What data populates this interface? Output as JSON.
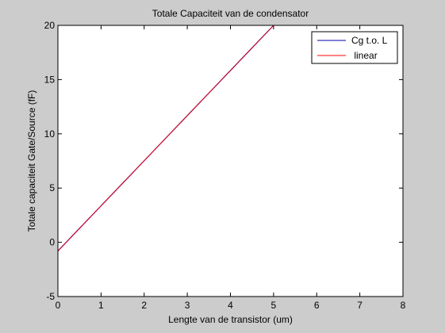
{
  "chart_data": {
    "type": "line",
    "title": "Totale Capaciteit van de condensator",
    "xlabel": "Lengte van de transistor (um)",
    "ylabel": "Totale capaciteit Gate/Source (fF)",
    "xlim": [
      0,
      8
    ],
    "ylim": [
      -5,
      20
    ],
    "xticks": [
      0,
      1,
      2,
      3,
      4,
      5,
      6,
      7,
      8
    ],
    "yticks": [
      -5,
      0,
      5,
      10,
      15,
      20
    ],
    "grid": false,
    "legend_position": "top-right",
    "series": [
      {
        "name": "Cg t.o. L",
        "color": "#0000aa",
        "x": [
          0.0,
          0.5,
          1.0,
          1.5,
          2.0,
          2.5,
          3.0,
          3.5,
          4.0,
          4.5,
          5.0
        ],
        "y": [
          -0.8,
          1.28,
          3.36,
          5.44,
          7.52,
          9.6,
          11.68,
          13.76,
          15.84,
          17.92,
          20.0
        ]
      },
      {
        "name": " linear",
        "color": "#ff0000",
        "x": [
          0.0,
          5.0
        ],
        "y": [
          -0.8,
          20.0
        ]
      }
    ]
  }
}
